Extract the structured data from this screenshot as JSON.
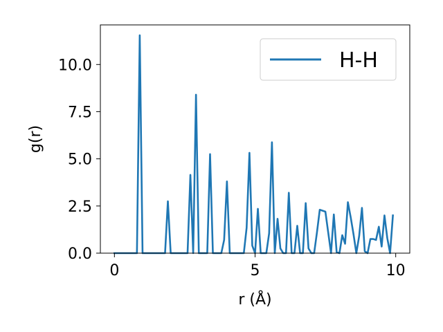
{
  "chart_data": {
    "type": "line",
    "xlabel": "r (Å)",
    "ylabel": "g(r)",
    "xlim": [
      -0.5,
      10.5
    ],
    "ylim": [
      0.0,
      12.1
    ],
    "xticks": [
      0,
      5,
      10
    ],
    "xtick_labels": [
      "0",
      "5",
      "10"
    ],
    "yticks": [
      0.0,
      2.5,
      5.0,
      7.5,
      10.0
    ],
    "ytick_labels": [
      "0.0",
      "2.5",
      "5.0",
      "7.5",
      "10.0"
    ],
    "grid": false,
    "legend_position": "top-right",
    "series": [
      {
        "name": "H-H",
        "color": "#1f77b4",
        "x": [
          0.0,
          0.1,
          0.2,
          0.3,
          0.4,
          0.5,
          0.6,
          0.7,
          0.8,
          0.9,
          1.0,
          1.1,
          1.2,
          1.3,
          1.4,
          1.5,
          1.6,
          1.7,
          1.8,
          1.9,
          2.0,
          2.1,
          2.2,
          2.3,
          2.4,
          2.5,
          2.6,
          2.7,
          2.8,
          2.9,
          3.0,
          3.1,
          3.2,
          3.3,
          3.4,
          3.5,
          3.6,
          3.7,
          3.8,
          3.9,
          4.0,
          4.1,
          4.2,
          4.3,
          4.4,
          4.5,
          4.6,
          4.7,
          4.8,
          4.9,
          5.0,
          5.1,
          5.2,
          5.3,
          5.4,
          5.5,
          5.6,
          5.7,
          5.8,
          5.9,
          6.0,
          6.1,
          6.2,
          6.3,
          6.4,
          6.5,
          6.6,
          6.7,
          6.8,
          6.9,
          7.0,
          7.1,
          7.2,
          7.3,
          7.4,
          7.5,
          7.6,
          7.7,
          7.8,
          7.9,
          8.0,
          8.1,
          8.2,
          8.3,
          8.4,
          8.5,
          8.6,
          8.7,
          8.8,
          8.9,
          9.0,
          9.1,
          9.2,
          9.3,
          9.4,
          9.5,
          9.6,
          9.7,
          9.8,
          9.9
        ],
        "y": [
          0.0,
          0.0,
          0.0,
          0.0,
          0.0,
          0.0,
          0.0,
          0.0,
          0.0,
          11.55,
          0.0,
          0.0,
          0.0,
          0.0,
          0.0,
          0.0,
          0.0,
          0.0,
          0.0,
          2.75,
          0.0,
          0.0,
          0.0,
          0.0,
          0.0,
          0.0,
          0.0,
          4.15,
          0.0,
          8.4,
          0.0,
          0.0,
          0.0,
          0.0,
          5.25,
          0.0,
          0.0,
          0.0,
          0.0,
          0.7,
          3.8,
          0.0,
          0.0,
          0.0,
          0.0,
          0.0,
          0.0,
          1.35,
          5.32,
          0.4,
          0.0,
          2.35,
          0.0,
          0.0,
          0.0,
          1.05,
          5.88,
          0.0,
          1.82,
          0.25,
          0.0,
          0.0,
          3.2,
          0.0,
          0.0,
          1.45,
          0.0,
          0.0,
          2.65,
          0.25,
          0.0,
          0.0,
          1.1,
          2.3,
          2.25,
          2.2,
          1.1,
          0.0,
          2.05,
          0.05,
          0.0,
          0.95,
          0.5,
          2.7,
          1.9,
          1.0,
          0.0,
          0.9,
          2.4,
          0.1,
          0.0,
          0.75,
          0.75,
          0.7,
          1.4,
          0.35,
          2.0,
          0.8,
          0.0,
          2.0
        ]
      }
    ]
  }
}
